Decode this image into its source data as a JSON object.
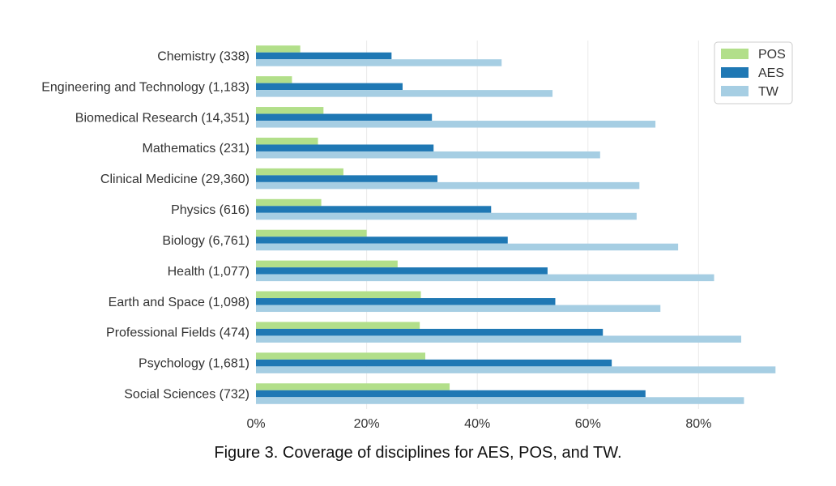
{
  "caption": "Figure 3. Coverage of disciplines for AES, POS, and TW.",
  "colors": {
    "POS": "#b2df8a",
    "AES": "#1f78b4",
    "TW": "#a6cee3",
    "grid": "#eaeaea"
  },
  "chart_data": {
    "type": "bar",
    "orientation": "horizontal",
    "title": "",
    "xlabel": "",
    "ylabel": "",
    "xlim": [
      0,
      0.94
    ],
    "x_ticks": [
      0,
      0.2,
      0.4,
      0.6,
      0.8
    ],
    "x_tick_labels": [
      "0%",
      "20%",
      "40%",
      "60%",
      "80%"
    ],
    "grid": "vertical",
    "legend_position": "top-right",
    "categories": [
      "Chemistry (338)",
      "Engineering and Technology (1,183)",
      "Biomedical Research (14,351)",
      "Mathematics (231)",
      "Clinical Medicine (29,360)",
      "Physics (616)",
      "Biology (6,761)",
      "Health (1,077)",
      "Earth and Space (1,098)",
      "Professional Fields (474)",
      "Psychology (1,681)",
      "Social Sciences (732)"
    ],
    "series": [
      {
        "name": "POS",
        "values": [
          0.08,
          0.065,
          0.122,
          0.112,
          0.158,
          0.118,
          0.2,
          0.256,
          0.298,
          0.296,
          0.306,
          0.35
        ]
      },
      {
        "name": "AES",
        "values": [
          0.245,
          0.265,
          0.318,
          0.321,
          0.328,
          0.425,
          0.455,
          0.527,
          0.541,
          0.627,
          0.643,
          0.704
        ]
      },
      {
        "name": "TW",
        "values": [
          0.444,
          0.536,
          0.722,
          0.622,
          0.693,
          0.688,
          0.763,
          0.828,
          0.731,
          0.877,
          0.939,
          0.882
        ]
      }
    ]
  }
}
